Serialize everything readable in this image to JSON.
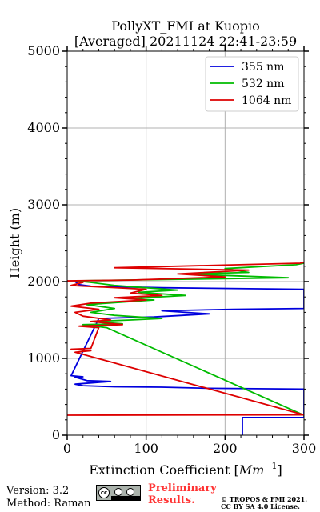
{
  "chart_data": {
    "type": "line",
    "title": "PollyXT_FMI at Kuopio",
    "subtitle": "[Averaged] 20211124 22:41-23:59",
    "xlabel_prefix": "Extinction Coefficient [",
    "xlabel_unit": "Mm",
    "xlabel_exp": "−1",
    "xlabel_suffix": "]",
    "ylabel": "Height (m)",
    "xlim": [
      0,
      300
    ],
    "ylim": [
      0,
      5000
    ],
    "x_ticks": [
      0,
      100,
      200,
      300
    ],
    "y_ticks": [
      0,
      1000,
      2000,
      3000,
      4000,
      5000
    ],
    "x_tick_labels": [
      "0",
      "100",
      "200",
      "300"
    ],
    "y_tick_labels": [
      "0",
      "1000",
      "2000",
      "3000",
      "4000",
      "5000"
    ],
    "grid": true,
    "legend_position": "top-right",
    "series": [
      {
        "name": "355 nm",
        "color": "#0000dd",
        "points": [
          [
            222,
            0
          ],
          [
            222,
            230
          ],
          [
            300,
            230
          ],
          [
            300,
            600
          ],
          [
            180,
            610
          ],
          [
            120,
            625
          ],
          [
            60,
            630
          ],
          [
            20,
            645
          ],
          [
            10,
            665
          ],
          [
            30,
            680
          ],
          [
            55,
            700
          ],
          [
            25,
            710
          ],
          [
            10,
            755
          ],
          [
            20,
            760
          ],
          [
            5,
            775
          ],
          [
            40,
            1520
          ],
          [
            110,
            1540
          ],
          [
            180,
            1580
          ],
          [
            120,
            1620
          ],
          [
            210,
            1640
          ],
          [
            300,
            1650
          ],
          [
            300,
            1900
          ],
          [
            120,
            1920
          ],
          [
            30,
            1940
          ],
          [
            15,
            1960
          ],
          [
            10,
            2000
          ]
        ]
      },
      {
        "name": "532 nm",
        "color": "#00bb00",
        "points": [
          [
            300,
            260
          ],
          [
            50,
            1400
          ],
          [
            20,
            1440
          ],
          [
            70,
            1450
          ],
          [
            30,
            1480
          ],
          [
            80,
            1500
          ],
          [
            120,
            1520
          ],
          [
            60,
            1560
          ],
          [
            30,
            1600
          ],
          [
            60,
            1650
          ],
          [
            25,
            1700
          ],
          [
            110,
            1760
          ],
          [
            80,
            1780
          ],
          [
            150,
            1820
          ],
          [
            90,
            1860
          ],
          [
            140,
            1890
          ],
          [
            60,
            1950
          ],
          [
            30,
            1990
          ],
          [
            10,
            2010
          ],
          [
            280,
            2050
          ],
          [
            200,
            2080
          ],
          [
            150,
            2100
          ],
          [
            230,
            2120
          ],
          [
            200,
            2170
          ],
          [
            290,
            2220
          ],
          [
            300,
            2240
          ]
        ]
      },
      {
        "name": "1064 nm",
        "color": "#dd0000",
        "points": [
          [
            0,
            260
          ],
          [
            300,
            265
          ],
          [
            10,
            1080
          ],
          [
            30,
            1100
          ],
          [
            5,
            1120
          ],
          [
            30,
            1130
          ],
          [
            40,
            1400
          ],
          [
            15,
            1420
          ],
          [
            70,
            1440
          ],
          [
            30,
            1480
          ],
          [
            55,
            1500
          ],
          [
            20,
            1550
          ],
          [
            10,
            1600
          ],
          [
            40,
            1640
          ],
          [
            5,
            1680
          ],
          [
            30,
            1720
          ],
          [
            100,
            1760
          ],
          [
            60,
            1790
          ],
          [
            120,
            1820
          ],
          [
            80,
            1850
          ],
          [
            100,
            1900
          ],
          [
            5,
            1950
          ],
          [
            20,
            1990
          ],
          [
            0,
            2010
          ],
          [
            80,
            2020
          ],
          [
            200,
            2060
          ],
          [
            140,
            2100
          ],
          [
            230,
            2150
          ],
          [
            60,
            2180
          ],
          [
            295,
            2240
          ],
          [
            300,
            2250
          ]
        ]
      }
    ]
  },
  "footer": {
    "version": "Version: 3.2",
    "method": "Method: Raman",
    "preliminary_line1": "Preliminary",
    "preliminary_line2": "Results.",
    "copyright_line1": "© TROPOS & FMI 2021.",
    "copyright_line2": "CC BY SA 4.0 License.",
    "license_badge_cc": "cc"
  }
}
